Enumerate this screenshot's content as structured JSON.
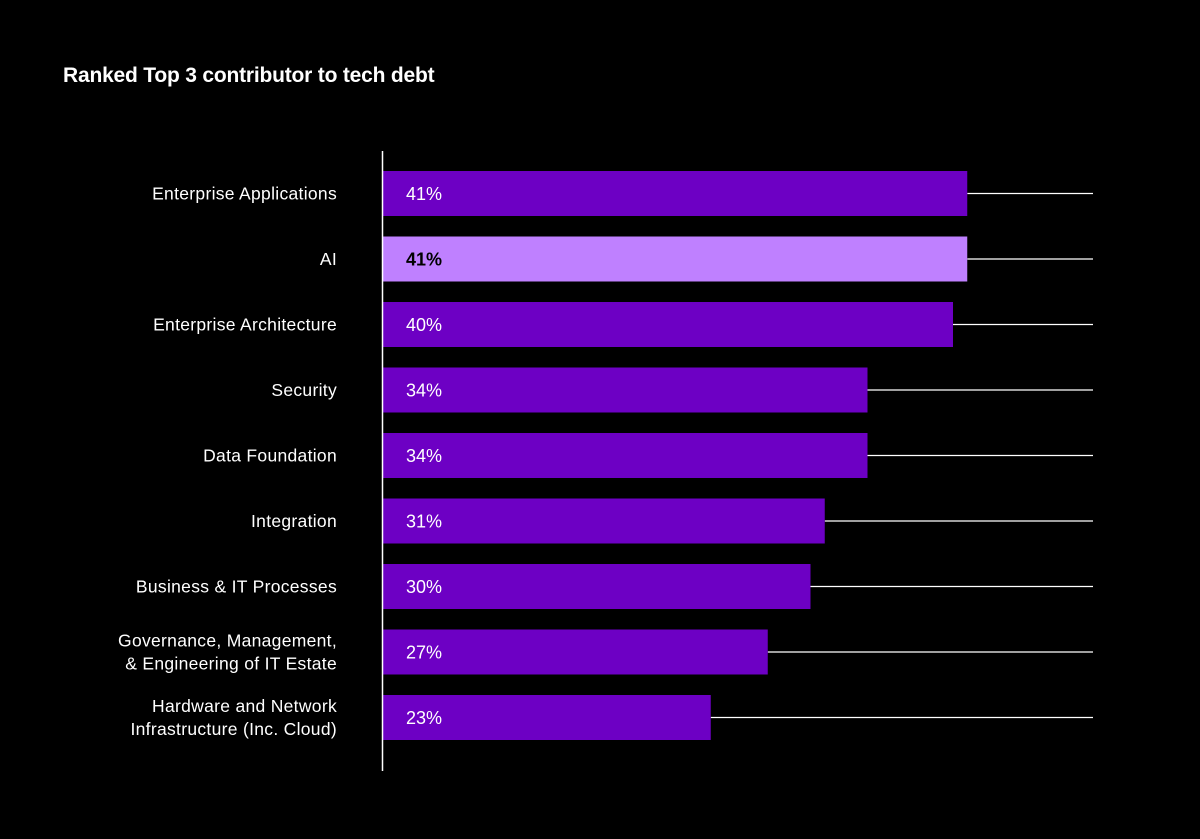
{
  "colors": {
    "background": "#000000",
    "bar": "#6d00c4",
    "bar_highlight": "#bf80ff",
    "label_on_bar": "#ffffff",
    "label_on_highlight": "#000000",
    "axis": "#ffffff",
    "leader_line": "#ffffff",
    "text": "#ffffff"
  },
  "chart_data": {
    "type": "bar",
    "orientation": "horizontal",
    "title": "Ranked Top 3 contributor to tech debt",
    "xlabel": "",
    "ylabel": "",
    "unit": "%",
    "xlim": [
      0,
      50
    ],
    "grid": false,
    "legend": "none",
    "categories": [
      [
        "Enterprise Applications"
      ],
      [
        "AI"
      ],
      [
        "Enterprise Architecture"
      ],
      [
        "Security"
      ],
      [
        "Data Foundation"
      ],
      [
        "Integration"
      ],
      [
        "Business & IT Processes"
      ],
      [
        "Governance, Management,",
        "& Engineering of IT Estate"
      ],
      [
        "Hardware and Network",
        "Infrastructure (Inc. Cloud)"
      ]
    ],
    "values": [
      41,
      41,
      40,
      34,
      34,
      31,
      30,
      27,
      23
    ],
    "value_labels": [
      "41%",
      "41%",
      "40%",
      "34%",
      "34%",
      "31%",
      "30%",
      "27%",
      "23%"
    ],
    "highlighted_index": 1
  }
}
